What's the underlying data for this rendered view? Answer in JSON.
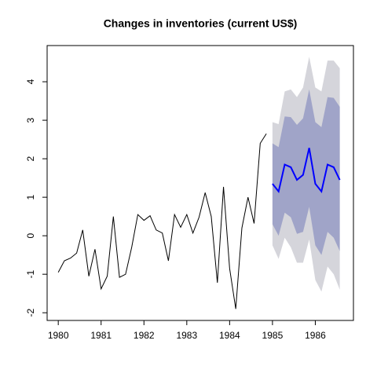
{
  "chart_data": {
    "type": "line",
    "title": "Changes in inventories (current US$)",
    "xlim": [
      1979.74,
      1986.89
    ],
    "ylim": [
      -2.2,
      4.94
    ],
    "xticks": [
      1980,
      1981,
      1982,
      1983,
      1984,
      1985,
      1986
    ],
    "yticks": [
      -2,
      -1,
      0,
      1,
      2,
      3,
      4
    ],
    "series": [
      {
        "color": "#000000",
        "x": [
          1980,
          1980.143,
          1980.286,
          1980.429,
          1980.571,
          1980.714,
          1980.857,
          1981,
          1981.143,
          1981.286,
          1981.429,
          1981.571,
          1981.714,
          1981.857,
          1982,
          1982.143,
          1982.286,
          1982.429,
          1982.571,
          1982.714,
          1982.857,
          1983,
          1983.143,
          1983.286,
          1983.429,
          1983.571,
          1983.714,
          1983.857,
          1984,
          1984.143,
          1984.286,
          1984.429,
          1984.571,
          1984.714,
          1984.857
        ],
        "values": [
          -0.95,
          -0.65,
          -0.58,
          -0.45,
          0.15,
          -1.05,
          -0.35,
          -1.38,
          -1.05,
          0.5,
          -1.08,
          -1.0,
          -0.3,
          0.55,
          0.4,
          0.52,
          0.15,
          0.07,
          -0.65,
          0.55,
          0.22,
          0.55,
          0.07,
          0.48,
          1.12,
          0.5,
          -1.22,
          1.27,
          -0.85,
          -1.9,
          0.2,
          1.0,
          0.32,
          2.4,
          2.65
        ]
      },
      {
        "color": "#0000ff",
        "x": [
          1985,
          1985.143,
          1985.286,
          1985.429,
          1985.571,
          1985.714,
          1985.857,
          1986,
          1986.143,
          1986.286,
          1986.429,
          1986.571
        ],
        "values": [
          1.35,
          1.15,
          1.85,
          1.78,
          1.45,
          1.58,
          2.28,
          1.35,
          1.15,
          1.85,
          1.78,
          1.45
        ],
        "bands": [
          {
            "color": "#d5d5db",
            "lower": [
              -0.25,
              -0.6,
              -0.05,
              -0.3,
              -0.7,
              -0.7,
              -0.1,
              -1.15,
              -1.45,
              -0.8,
              -1.0,
              -1.4
            ],
            "upper": [
              2.95,
              2.9,
              3.75,
              3.8,
              3.6,
              3.85,
              4.65,
              3.85,
              3.75,
              4.55,
              4.55,
              4.35
            ]
          },
          {
            "color": "#a0a4c8",
            "lower": [
              0.3,
              0.0,
              0.6,
              0.48,
              0.05,
              0.1,
              0.75,
              -0.25,
              -0.5,
              0.1,
              -0.05,
              -0.4
            ],
            "upper": [
              2.4,
              2.3,
              3.1,
              3.08,
              2.88,
              3.05,
              3.8,
              2.95,
              2.82,
              3.6,
              3.58,
              3.35
            ]
          }
        ]
      }
    ]
  }
}
